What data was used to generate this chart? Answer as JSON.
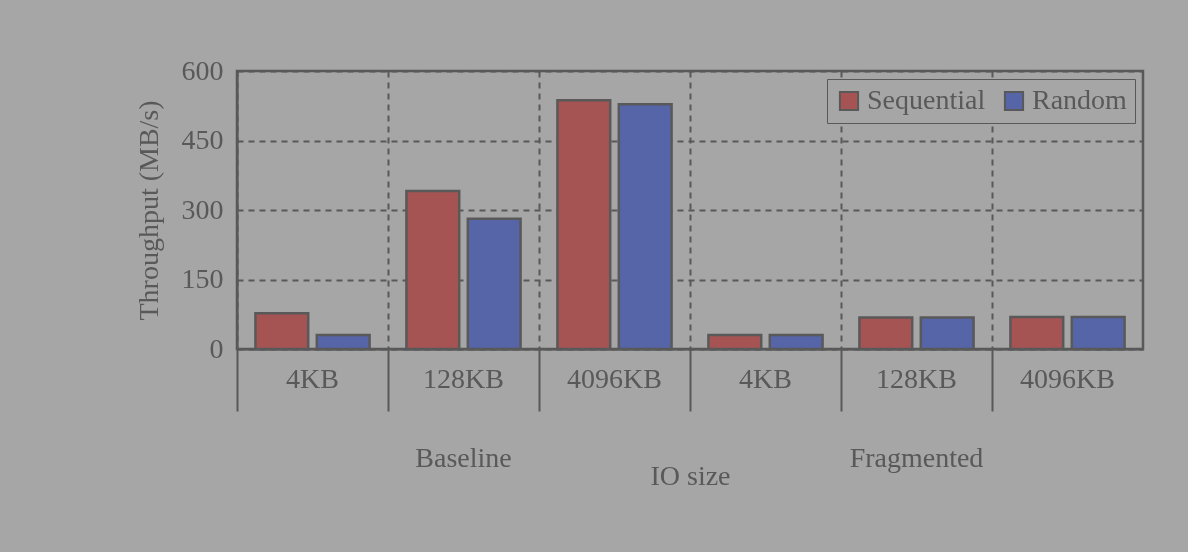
{
  "chart_data": {
    "type": "bar",
    "xlabel": "IO size",
    "ylabel": "Throughput (MB/s)",
    "categories": [
      "4KB",
      "128KB",
      "4096KB",
      "4KB",
      "128KB",
      "4096KB"
    ],
    "series": [
      {
        "name": "Sequential",
        "color": "#a65353",
        "values": [
          77,
          341,
          537,
          30,
          68,
          69
        ]
      },
      {
        "name": "Random",
        "color": "#5565a8",
        "values": [
          30,
          281,
          528,
          30,
          68,
          69
        ]
      }
    ],
    "annotations": [
      "Baseline",
      "Fragmented"
    ],
    "ylim": [
      0,
      600
    ],
    "yticks": [
      0,
      150,
      300,
      450,
      600
    ],
    "grid": true,
    "legend": "top right"
  }
}
